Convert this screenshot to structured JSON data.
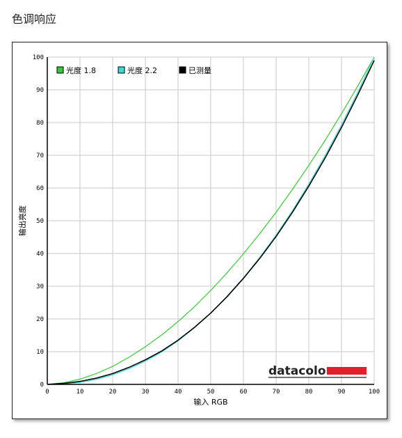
{
  "page": {
    "title": "色调响应"
  },
  "chart_data": {
    "type": "line",
    "xlabel": "输入 RGB",
    "ylabel": "输出亮度",
    "xlim": [
      0,
      100
    ],
    "ylim": [
      0,
      100
    ],
    "x_ticks": [
      "0",
      "10",
      "20",
      "30",
      "40",
      "50",
      "60",
      "70",
      "80",
      "90",
      "100"
    ],
    "y_ticks": [
      "0",
      "10",
      "20",
      "30",
      "40",
      "50",
      "60",
      "70",
      "80",
      "90",
      "100"
    ],
    "grid": true,
    "legend_position": "top-left",
    "logo": "datacolor",
    "series": [
      {
        "name": "光度 1.8",
        "color": "#33cc33",
        "x": [
          0,
          5,
          10,
          15,
          20,
          25,
          30,
          35,
          40,
          45,
          50,
          55,
          60,
          65,
          70,
          75,
          80,
          85,
          90,
          95,
          100
        ],
        "y": [
          0.0,
          0.5,
          1.6,
          3.3,
          5.5,
          8.3,
          11.5,
          15.1,
          19.2,
          23.7,
          28.7,
          34.1,
          39.9,
          46.1,
          52.6,
          59.6,
          66.9,
          74.6,
          82.7,
          91.2,
          100.0
        ]
      },
      {
        "name": "光度 2.2",
        "color": "#33dddd",
        "x": [
          0,
          5,
          10,
          15,
          20,
          25,
          30,
          35,
          40,
          45,
          50,
          55,
          60,
          65,
          70,
          75,
          80,
          85,
          90,
          95,
          100
        ],
        "y": [
          0.0,
          0.1,
          0.6,
          1.5,
          2.9,
          4.8,
          7.1,
          9.9,
          13.3,
          17.3,
          21.8,
          26.9,
          32.5,
          38.8,
          45.6,
          53.1,
          61.2,
          69.9,
          79.3,
          89.3,
          100.0
        ]
      },
      {
        "name": "已测量",
        "color": "#000000",
        "x": [
          0,
          5,
          10,
          15,
          20,
          25,
          30,
          35,
          40,
          45,
          50,
          55,
          60,
          65,
          70,
          75,
          80,
          85,
          90,
          95,
          100
        ],
        "y": [
          0.0,
          0.3,
          0.9,
          1.9,
          3.3,
          5.2,
          7.5,
          10.2,
          13.5,
          17.4,
          21.8,
          26.8,
          32.4,
          38.5,
          45.2,
          52.6,
          60.6,
          69.2,
          78.5,
          88.5,
          99.0
        ]
      }
    ]
  }
}
